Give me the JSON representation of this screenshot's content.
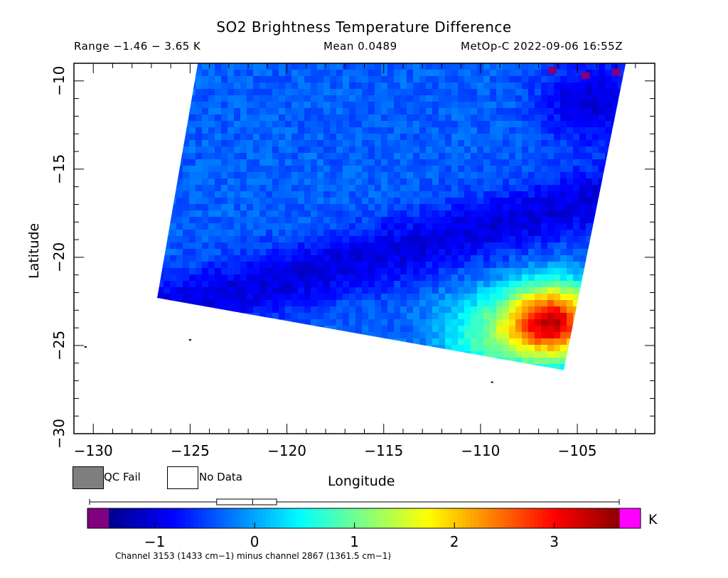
{
  "header": {
    "title": "SO2 Brightness Temperature Difference",
    "range": "Range −1.46 − 3.65 K",
    "mean": "Mean 0.0489",
    "satellite": "MetOp-C 2022-09-06 16:55Z"
  },
  "axes": {
    "xlabel": "Longitude",
    "ylabel": "Latitude",
    "x_ticks": [
      "−130",
      "−125",
      "−120",
      "−115",
      "−110",
      "−105"
    ],
    "x_tick_values": [
      -130,
      -125,
      -120,
      -115,
      -110,
      -105
    ],
    "y_ticks": [
      "−10",
      "−15",
      "−20",
      "−25",
      "−30"
    ],
    "y_tick_values": [
      -10,
      -15,
      -20,
      -25,
      -30
    ],
    "xlim": [
      -131,
      -101
    ],
    "ylim": [
      -30,
      -9
    ]
  },
  "legend": {
    "qc_fail": "QC Fail",
    "no_data": "No Data",
    "qc_fail_color": "#7f7f7f",
    "no_data_color": "#ffffff"
  },
  "colorbar": {
    "ticks": [
      "−1",
      "0",
      "1",
      "2",
      "3"
    ],
    "tick_values": [
      -1,
      0,
      1,
      2,
      3
    ],
    "range": [
      -1.46,
      3.65
    ],
    "unit": "K",
    "low_out_color": "#800080",
    "high_out_color": "#ff00ff",
    "colors": [
      "#00008b",
      "#0000ff",
      "#0080ff",
      "#00ffff",
      "#80ff80",
      "#ffff00",
      "#ff8000",
      "#ff0000",
      "#8b0000"
    ],
    "boxplot": {
      "min": -1.46,
      "q1": -0.38,
      "median": -0.02,
      "q3": 0.22,
      "max": 3.65
    },
    "note": "Channel 3153 (1433 cm−1) minus channel 2867 (1361.5 cm−1)"
  },
  "chart_data": {
    "type": "heatmap",
    "title": "SO2 Brightness Temperature Difference",
    "xlabel": "Longitude",
    "ylabel": "Latitude",
    "xlim": [
      -131,
      -101
    ],
    "ylim": [
      -30,
      -9
    ],
    "value_range": [
      -1.46,
      3.65
    ],
    "mean": 0.0489,
    "swath_corners_lonlat": [
      [
        -124.6,
        -9
      ],
      [
        -102.5,
        -9
      ],
      [
        -105.7,
        -26.4
      ],
      [
        -126.7,
        -22.3
      ]
    ],
    "features": [
      {
        "name": "SO2 maximum",
        "lon": -106.5,
        "lat": -23.5,
        "value": 3.3
      },
      {
        "name": "low band",
        "lon": -120,
        "lat": -21,
        "value": -1.0
      },
      {
        "name": "northeast low",
        "lon": -104.5,
        "lat": -11,
        "value": -1.1
      }
    ],
    "coastline_points": [
      [
        -130.4,
        -25.1
      ],
      [
        -125,
        -24.7
      ],
      [
        -109.4,
        -27.1
      ]
    ]
  }
}
